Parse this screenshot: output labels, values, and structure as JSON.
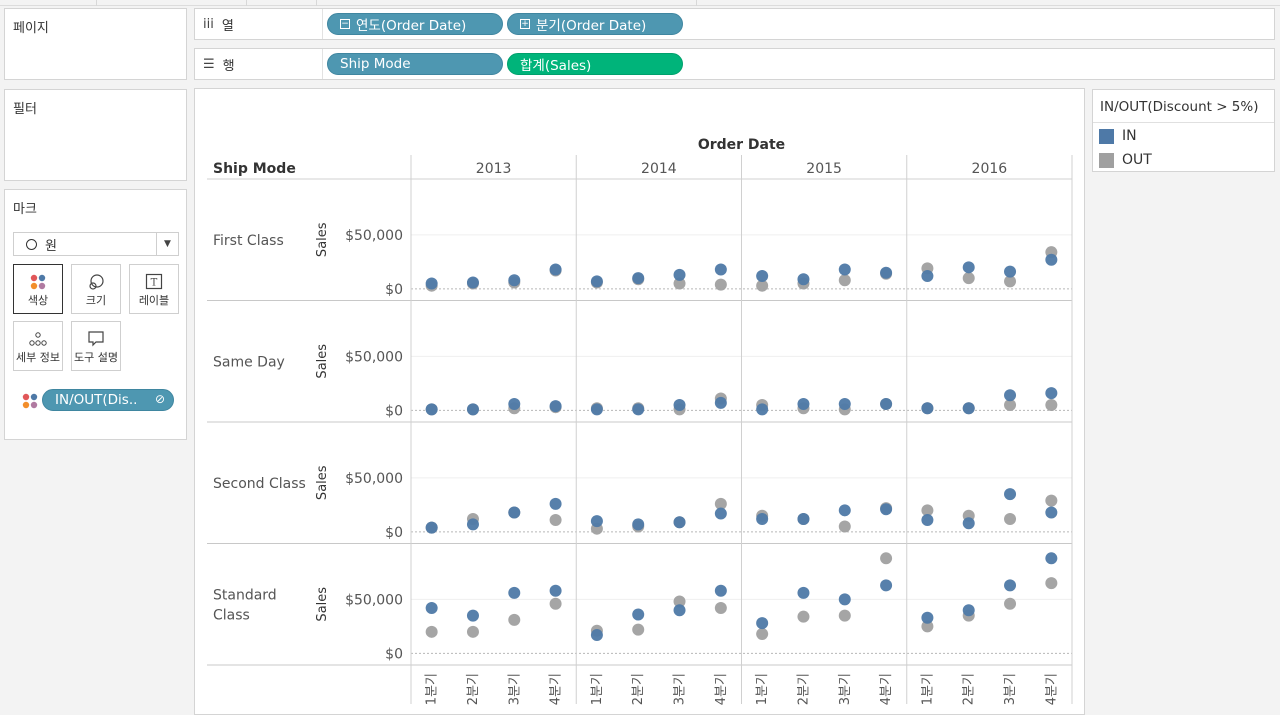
{
  "shelves": {
    "pages_title": "페이지",
    "filters_title": "필터",
    "columns_label": "열",
    "rows_label": "행",
    "column_pills": [
      "연도(Order Date)",
      "분기(Order Date)"
    ],
    "row_pills": [
      "Ship Mode",
      "합계(Sales)"
    ]
  },
  "marks": {
    "title": "마크",
    "mark_type": "원",
    "buttons": {
      "color": "색상",
      "size": "크기",
      "label": "레이블",
      "detail": "세부 정보",
      "tooltip": "도구 설명"
    },
    "color_pill": "IN/OUT(Dis.."
  },
  "legend": {
    "title": "IN/OUT(Discount > 5%)",
    "items": [
      {
        "label": "IN",
        "color": "#4e79a7"
      },
      {
        "label": "OUT",
        "color": "#a0a0a0"
      }
    ]
  },
  "chart_data": {
    "type": "scatter",
    "title": "",
    "column_header": "Order Date",
    "row_header": "Ship Mode",
    "years": [
      "2013",
      "2014",
      "2015",
      "2016"
    ],
    "quarters": [
      "1분기",
      "2분기",
      "3분기",
      "4분기"
    ],
    "ylabel": "Sales",
    "yticks": [
      "$50,000",
      "$0"
    ],
    "series_colors": {
      "IN": "#4e79a7",
      "OUT": "#a0a0a0"
    },
    "panels": [
      {
        "ship_mode": "First Class",
        "ylim": [
          -7000,
          98000
        ],
        "IN": [
          5000,
          6000,
          8000,
          18000,
          7000,
          10000,
          13000,
          18000,
          12000,
          9000,
          18000,
          15000,
          12000,
          20000,
          16000,
          27000
        ],
        "OUT": [
          3000,
          5000,
          6000,
          17000,
          6000,
          9000,
          5000,
          4000,
          3000,
          5000,
          8000,
          14000,
          19000,
          10000,
          7000,
          34000
        ]
      },
      {
        "ship_mode": "Same Day",
        "ylim": [
          -7000,
          98000
        ],
        "IN": [
          1000,
          1000,
          6000,
          4000,
          1000,
          1000,
          5000,
          7000,
          1000,
          6000,
          6000,
          6000,
          2000,
          2000,
          14000,
          16000
        ],
        "OUT": [
          1000,
          1000,
          2000,
          3000,
          2000,
          2000,
          1000,
          11000,
          5000,
          2000,
          1000,
          6000,
          2000,
          2000,
          5000,
          5000
        ]
      },
      {
        "ship_mode": "Second Class",
        "ylim": [
          -7000,
          98000
        ],
        "IN": [
          4000,
          7000,
          18000,
          26000,
          10000,
          7000,
          9000,
          17000,
          12000,
          12000,
          20000,
          21000,
          11000,
          8000,
          35000,
          18000
        ],
        "OUT": [
          4000,
          12000,
          18000,
          11000,
          3000,
          5000,
          9000,
          26000,
          15000,
          12000,
          5000,
          22000,
          20000,
          15000,
          12000,
          29000
        ],
        "note": ""
      },
      {
        "ship_mode": "Standard Class",
        "ylim": [
          -7000,
          98000
        ],
        "IN": [
          42000,
          35000,
          56000,
          58000,
          17000,
          36000,
          40000,
          58000,
          28000,
          56000,
          50000,
          63000,
          33000,
          40000,
          63000,
          88000
        ],
        "OUT": [
          20000,
          20000,
          31000,
          46000,
          21000,
          22000,
          48000,
          42000,
          18000,
          34000,
          35000,
          88000,
          25000,
          35000,
          46000,
          65000
        ]
      }
    ]
  }
}
